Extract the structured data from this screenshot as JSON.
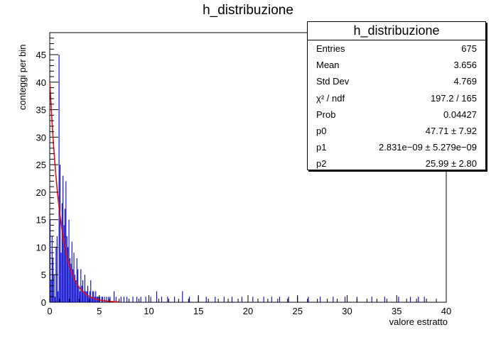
{
  "chart_data": {
    "type": "bar",
    "title": "h_distribuzione",
    "xlabel": "valore estratto",
    "ylabel": "conteggi per bin",
    "xlim": [
      0,
      40
    ],
    "ylim": [
      0,
      49
    ],
    "xticks": [
      "0",
      "5",
      "10",
      "15",
      "20",
      "25",
      "30",
      "35",
      "40"
    ],
    "yticks": [
      "0",
      "5",
      "10",
      "15",
      "20",
      "25",
      "30",
      "35",
      "40",
      "45"
    ],
    "bin_width": 0.1,
    "bar_color": "#0000cc",
    "fit_color": "#e01010",
    "grid": false,
    "legend": "top-right",
    "fit": {
      "function": "p0 * exp(-x/p2... ) + p1",
      "p0": 47.71,
      "p1": 2.831e-09,
      "p2": 25.99
    },
    "series": [
      {
        "x": [
          0.05,
          0.15,
          0.25,
          0.35,
          0.45,
          0.55,
          0.65,
          0.75,
          0.85,
          0.95,
          1.05,
          1.15,
          1.25,
          1.35,
          1.45,
          1.55,
          1.65,
          1.75,
          1.85,
          1.95,
          2.05,
          2.15,
          2.25,
          2.35,
          2.45,
          2.55,
          2.65,
          2.75,
          2.85,
          2.95,
          3.05,
          3.15,
          3.25,
          3.35,
          3.45,
          3.55,
          3.65,
          3.75,
          3.85,
          3.95,
          4.05,
          4.15,
          4.25,
          4.35,
          4.45,
          4.55,
          4.65,
          4.75,
          4.85,
          4.95,
          5.05,
          5.15,
          5.25,
          5.35,
          5.45,
          5.55,
          5.65,
          5.75,
          5.85,
          5.95,
          6.1,
          6.3,
          6.5,
          6.7,
          6.9,
          7.2,
          7.5,
          7.8,
          8.1,
          8.4,
          8.8,
          9.2,
          9.7,
          10.2,
          10.8,
          11.3,
          11.9,
          12.6,
          13.4,
          14.1,
          15.0,
          15.8,
          16.7,
          17.6,
          18.4,
          19.4,
          20.5,
          21.6,
          22.4,
          23.2,
          24.1,
          25.0,
          26.1,
          27.3,
          28.6,
          29.8,
          31.0,
          32.5,
          33.8,
          35.2,
          36.4,
          37.2,
          37.8
        ],
        "values": [
          15,
          4,
          12,
          8,
          5,
          1,
          10,
          12,
          2,
          45,
          25,
          9,
          18,
          23,
          14,
          17,
          22,
          12,
          10,
          15,
          8,
          7,
          11,
          6,
          9,
          5,
          4,
          8,
          6,
          3,
          2,
          6,
          3,
          4,
          2,
          5,
          2,
          2,
          3,
          1,
          2,
          4,
          1,
          2,
          2,
          1,
          2,
          1,
          1,
          1,
          1,
          0,
          1,
          1,
          0,
          1,
          0,
          1,
          0,
          1,
          1,
          0,
          2,
          1,
          0,
          1,
          1,
          1,
          0,
          1,
          1,
          1,
          1,
          1,
          2,
          1,
          1,
          1,
          2,
          1,
          1,
          1,
          1,
          1,
          1,
          1,
          1,
          1,
          1,
          1,
          1,
          1,
          1,
          1,
          1,
          1,
          1,
          1,
          1,
          1,
          1,
          1,
          1
        ]
      }
    ]
  },
  "statbox": {
    "title": "h_distribuzione",
    "rows": [
      {
        "label": "Entries",
        "value": "675"
      },
      {
        "label": "Mean",
        "value": "3.656"
      },
      {
        "label": "Std Dev",
        "value": "4.769"
      },
      {
        "label": "χ² / ndf",
        "value": "197.2 / 165"
      },
      {
        "label": "Prob",
        "value": "0.04427"
      },
      {
        "label": "p0",
        "value": "47.71 ± 7.92"
      },
      {
        "label": "p1",
        "value": "2.831e−09 ± 5.279e−09"
      },
      {
        "label": "p2",
        "value": "25.99 ± 2.80"
      }
    ]
  }
}
